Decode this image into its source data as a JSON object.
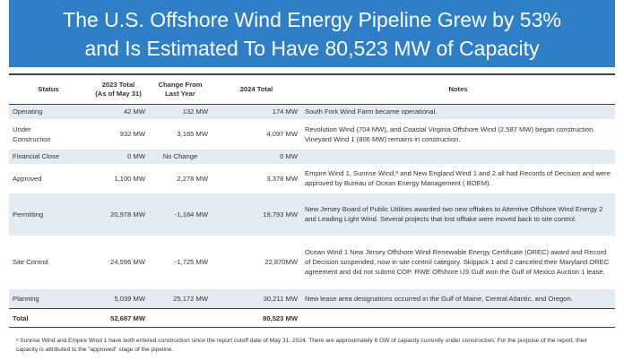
{
  "header": {
    "title": "The U.S. Offshore Wind Energy Pipeline Grew by 53% and Is Estimated To Have 80,523 MW of Capacity"
  },
  "table": {
    "columns": [
      "Status",
      "2023 Total\n(As of May 31)",
      "Change From\nLast Year",
      "2024 Total",
      "Notes"
    ],
    "rows": [
      {
        "status": "Operating",
        "total_2023": "42 MW",
        "change": "132 MW",
        "total_2024": "174 MW",
        "notes": "South Fork Wind Farm became operational."
      },
      {
        "status": "Under\nConstruction",
        "total_2023": "932 MW",
        "change": "3,165 MW",
        "total_2024": "4,097 MW",
        "notes": "Revolution Wind (704 MW), and Coastal Virginia Offshore Wind (2,587 MW) began construction. Vineyard Wind 1 (806 MW) remains in construction."
      },
      {
        "status": "Financial Close",
        "total_2023": "0 MW",
        "change": "No Change",
        "total_2024": "0 MW"
      },
      {
        "status": "Approved",
        "total_2023": "1,100 MW",
        "change": "2,278 MW",
        "total_2024": "3,378 MW",
        "notes": "Empire Wind 1, Sunrise Wind,ᵃ and New England Wind 1 and 2 all had Records of Decision and were approved by Bureau of Ocean Energy Management ( BOEM)."
      },
      {
        "status": "Permitting",
        "total_2023": "20,978 MW",
        "change": "-1,184 MW",
        "total_2024": "19,793 MW",
        "notes": "New Jersey Board of Public Utilities awarded two new offtakes to Attentive Offshore Wind Energy 2 and Leading Light Wind. Several projects that lost offtake were moved back to site control."
      },
      {
        "status": "Site Control",
        "total_2023": "24,596 MW",
        "change": "-1,725 MW",
        "total_2024": "22,870MW",
        "notes": "Ocean Wind 1 New Jersey Offshore Wind Renewable Energy Certificate (OREC) award and Record of Decision suspended, now in site control category. Skipjack 1 and 2 canceled their Maryland OREC agreement and did not submit COP. RWE Offshore US Gulf won the Gulf of Mexico Auction 1 lease."
      },
      {
        "status": "Planning",
        "total_2023": "5,039 MW",
        "change": "25,172 MW",
        "total_2024": "30,211 MW",
        "notes": "New lease area designations occurred in the Gulf of Maine, Central Atlantic, and Oregon."
      }
    ],
    "total": {
      "status": "Total",
      "total_2023": "52,687 MW",
      "total_2024": "80,523 MW"
    }
  },
  "footnote": "ᵃ Sunrise Wind and Empire Wind 1 have both entered construction since the report cutoff date of May 31, 2024. There are approximately 6 GW of capacity currently under construction. For the purpose of the report, their capacity is attributed to the \"approved\" stage of the pipeline."
}
